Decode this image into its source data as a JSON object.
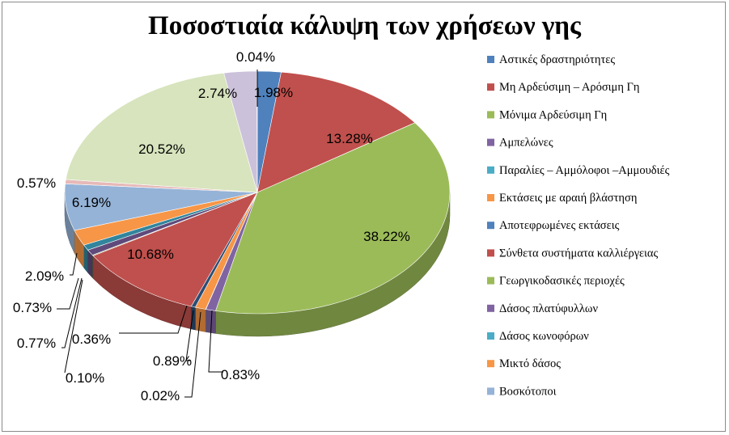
{
  "chart_data": {
    "type": "pie",
    "title": "Ποσοστιαία κάλυψη των χρήσεων γης",
    "legend_position": "right",
    "three_d": true,
    "slices": [
      {
        "label": "Αστικές δραστηριότητες",
        "value": 1.98,
        "value_label": "1.98%",
        "color": "#4f81bd"
      },
      {
        "label": "Μη Αρδεύσιμη – Αρόσιμη Γη",
        "value": 13.28,
        "value_label": "13.28%",
        "color": "#c0504d"
      },
      {
        "label": "Μόνιμα Αρδεύσιμη Γη",
        "value": 38.22,
        "value_label": "38.22%",
        "color": "#9bbb59"
      },
      {
        "label": "Αμπελώνες",
        "value": 0.83,
        "value_label": "0.83%",
        "color": "#8064a2"
      },
      {
        "label": "Παραλίες – Αμμόλοφοι –Αμμουδιές",
        "value": 0.02,
        "value_label": "0.02%",
        "color": "#4bacc6"
      },
      {
        "label": "Εκτάσεις με αραιή βλάστηση",
        "value": 0.89,
        "value_label": "0.89%",
        "color": "#f79646"
      },
      {
        "label": "Αποτεφρωμένες εκτάσεις",
        "value": 0.36,
        "value_label": "0.36%",
        "color": "#2c4d75"
      },
      {
        "label": "Σύνθετα συστήματα καλλιέργειας",
        "value": 10.68,
        "value_label": "10.68%",
        "color": "#c0504d"
      },
      {
        "label": "Γεωργικοδασικές περιοχές",
        "value": 0.1,
        "value_label": "0.10%",
        "color": "#77933c"
      },
      {
        "label": "Δάσος πλατύφυλλων",
        "value": 0.77,
        "value_label": "0.77%",
        "color": "#604a7b"
      },
      {
        "label": "Δάσος κωνοφόρων",
        "value": 0.73,
        "value_label": "0.73%",
        "color": "#31859c"
      },
      {
        "label": "Μικτό δάσος",
        "value": 2.09,
        "value_label": "2.09%",
        "color": "#f79646"
      },
      {
        "label": "Βοσκότοποι",
        "value": 6.19,
        "value_label": "6.19%",
        "color": "#95b3d7"
      },
      {
        "label": "",
        "value": 0.57,
        "value_label": "0.57%",
        "color": "#e6b9b8"
      },
      {
        "label": "",
        "value": 20.52,
        "value_label": "20.52%",
        "color": "#d7e4bd"
      },
      {
        "label": "",
        "value": 2.74,
        "value_label": "2.74%",
        "color": "#ccc1da"
      },
      {
        "label": "",
        "value": 0.04,
        "value_label": "0.04%",
        "color": "#b7dee8"
      }
    ],
    "legend": [
      {
        "label": "Αστικές δραστηριότητες",
        "color": "#4f81bd"
      },
      {
        "label": "Μη Αρδεύσιμη – Αρόσιμη Γη",
        "color": "#c0504d"
      },
      {
        "label": "Μόνιμα Αρδεύσιμη Γη",
        "color": "#9bbb59"
      },
      {
        "label": "Αμπελώνες",
        "color": "#8064a2"
      },
      {
        "label": "Παραλίες – Αμμόλοφοι –Αμμουδιές",
        "color": "#4bacc6"
      },
      {
        "label": "Εκτάσεις με αραιή βλάστηση",
        "color": "#f79646"
      },
      {
        "label": "Αποτεφρωμένες εκτάσεις",
        "color": "#4f81bd"
      },
      {
        "label": "Σύνθετα συστήματα καλλιέργειας",
        "color": "#c0504d"
      },
      {
        "label": "Γεωργικοδασικές περιοχές",
        "color": "#9bbb59"
      },
      {
        "label": "Δάσος πλατύφυλλων",
        "color": "#8064a2"
      },
      {
        "label": "Δάσος κωνοφόρων",
        "color": "#4bacc6"
      },
      {
        "label": "Μικτό δάσος",
        "color": "#f79646"
      },
      {
        "label": "Βοσκότοποι",
        "color": "#95b3d7"
      }
    ]
  }
}
